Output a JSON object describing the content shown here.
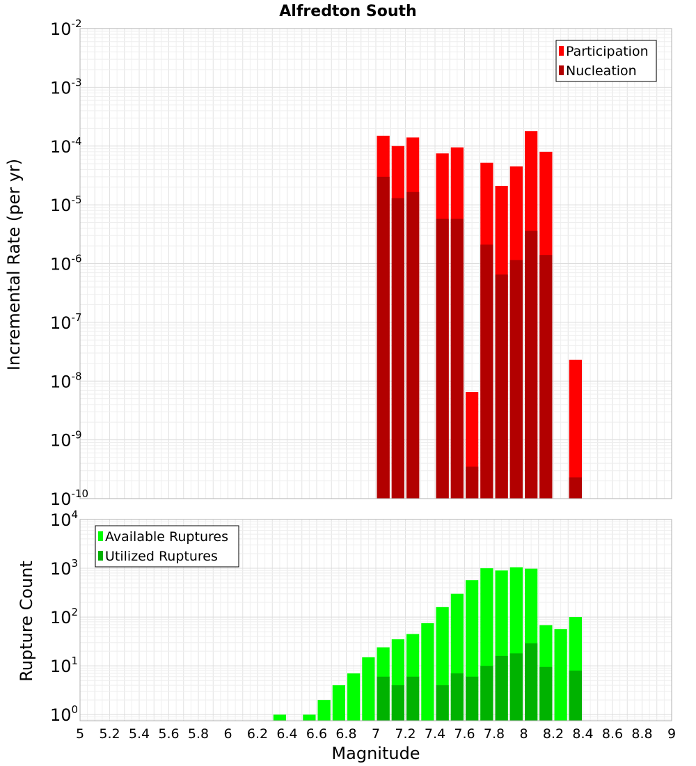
{
  "chart_data": [
    {
      "type": "bar",
      "title": "Alfredton South",
      "ylabel": "Incremental Rate (per yr)",
      "xlabel": "",
      "yscale": "log",
      "ylim": [
        1e-10,
        0.01
      ],
      "xlim": [
        5,
        9
      ],
      "bin_width": 0.1,
      "legend_position": "top-right",
      "grid": true,
      "y_tick_exponents": [
        -10,
        -9,
        -8,
        -7,
        -6,
        -5,
        -4,
        -3,
        -2
      ],
      "y_tick_base": "10",
      "colors": {
        "Participation": "#ff0000",
        "Nucleation": "#b20000"
      },
      "x": [
        7.05,
        7.15,
        7.25,
        7.45,
        7.55,
        7.65,
        7.75,
        7.85,
        7.95,
        8.05,
        8.15,
        8.35
      ],
      "series": [
        {
          "name": "Participation",
          "values": [
            0.00015,
            0.0001,
            0.00014,
            7.5e-05,
            9.5e-05,
            6.5e-09,
            5.2e-05,
            2.1e-05,
            4.5e-05,
            0.00018,
            8e-05,
            2.3e-08
          ]
        },
        {
          "name": "Nucleation",
          "values": [
            3e-05,
            1.3e-05,
            1.65e-05,
            5.8e-06,
            5.8e-06,
            3.5e-10,
            2.1e-06,
            6.5e-07,
            1.15e-06,
            3.6e-06,
            1.4e-06,
            2.3e-10
          ]
        }
      ]
    },
    {
      "type": "bar",
      "title": "",
      "ylabel": "Rupture Count",
      "xlabel": "Magnitude",
      "yscale": "log",
      "ylim": [
        0.75,
        10000
      ],
      "xlim": [
        5,
        9
      ],
      "bin_width": 0.1,
      "legend_position": "top-left",
      "grid": true,
      "y_tick_exponents": [
        0,
        1,
        2,
        3,
        4
      ],
      "y_tick_base": "10",
      "x_tick_labels": [
        "5",
        "5.2",
        "5.4",
        "5.6",
        "5.8",
        "6",
        "6.2",
        "6.4",
        "6.6",
        "6.8",
        "7",
        "7.2",
        "7.4",
        "7.6",
        "7.8",
        "8",
        "8.2",
        "8.4",
        "8.6",
        "8.8",
        "9"
      ],
      "colors": {
        "Available Ruptures": "#00ff00",
        "Utilized Ruptures": "#00b200"
      },
      "x": [
        6.35,
        6.55,
        6.65,
        6.75,
        6.85,
        6.95,
        7.05,
        7.15,
        7.25,
        7.35,
        7.45,
        7.55,
        7.65,
        7.75,
        7.85,
        7.95,
        8.05,
        8.15,
        8.25,
        8.35
      ],
      "series": [
        {
          "name": "Available Ruptures",
          "values": [
            1,
            1,
            2,
            4,
            7,
            15,
            24,
            35,
            45,
            75,
            160,
            300,
            570,
            1000,
            900,
            1050,
            980,
            68,
            57,
            100
          ]
        },
        {
          "name": "Utilized Ruptures",
          "values": [
            null,
            null,
            null,
            null,
            null,
            null,
            6,
            4,
            6,
            null,
            4,
            7,
            6,
            10,
            16,
            18,
            29,
            9.5,
            null,
            8
          ]
        }
      ]
    }
  ]
}
